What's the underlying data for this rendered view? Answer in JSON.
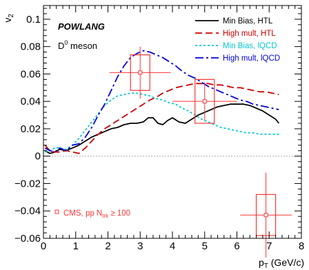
{
  "chart_data": {
    "type": "line",
    "xlabel": "p",
    "xlabel_sub": "T",
    "xlabel_unit": " (GeV/c)",
    "ylabel": "v",
    "ylabel_sub": "2",
    "xlim": [
      0,
      8
    ],
    "ylim": [
      -0.06,
      0.11
    ],
    "x_ticks": [
      0,
      1,
      2,
      3,
      4,
      5,
      6,
      7,
      8
    ],
    "y_ticks": [
      -0.06,
      -0.04,
      -0.02,
      0,
      0.02,
      0.04,
      0.06,
      0.08,
      0.1
    ],
    "y_tick_labels": [
      "−0.06",
      "−0.04",
      "−0.02",
      "0",
      "0.02",
      "0.04",
      "0.06",
      "0.08",
      "0.1"
    ],
    "annotations": {
      "model": "POWLANG",
      "particle": "D",
      "particle_sup": "0",
      "particle_suffix": " meson"
    },
    "legend_position": "top-right",
    "series": [
      {
        "name": "Min Bias, HTL",
        "color": "#000000",
        "dash": "solid",
        "x": [
          0.05,
          0.2,
          0.35,
          0.5,
          0.7,
          0.9,
          1.1,
          1.3,
          1.5,
          1.7,
          1.9,
          2.1,
          2.3,
          2.5,
          2.7,
          2.9,
          3.1,
          3.25,
          3.4,
          3.55,
          3.7,
          3.85,
          4.0,
          4.2,
          4.4,
          4.6,
          4.8,
          5.0,
          5.2,
          5.4,
          5.6,
          5.8,
          6.0,
          6.2,
          6.4,
          6.6,
          6.8,
          7.0,
          7.2,
          7.3
        ],
        "y": [
          0.004,
          0.002,
          0.003,
          0.005,
          0.004,
          0.006,
          0.008,
          0.011,
          0.014,
          0.016,
          0.018,
          0.02,
          0.021,
          0.023,
          0.024,
          0.024,
          0.025,
          0.028,
          0.028,
          0.024,
          0.023,
          0.026,
          0.028,
          0.025,
          0.024,
          0.027,
          0.03,
          0.032,
          0.034,
          0.036,
          0.037,
          0.038,
          0.038,
          0.038,
          0.037,
          0.035,
          0.033,
          0.03,
          0.027,
          0.024
        ]
      },
      {
        "name": "High mult, HTL",
        "color": "#cc0000",
        "dash": "long-dash",
        "x": [
          0.05,
          0.2,
          0.35,
          0.5,
          0.7,
          0.9,
          1.1,
          1.3,
          1.5,
          1.7,
          1.9,
          2.1,
          2.3,
          2.5,
          2.7,
          2.9,
          3.1,
          3.3,
          3.5,
          3.7,
          3.9,
          4.1,
          4.3,
          4.5,
          4.7,
          4.9,
          5.1,
          5.3,
          5.5,
          5.7,
          5.9,
          6.1,
          6.3,
          6.5,
          6.7,
          6.9,
          7.1,
          7.3
        ],
        "y": [
          0.008,
          0.004,
          0.003,
          0.003,
          0.004,
          0.003,
          0.002,
          0.006,
          0.011,
          0.016,
          0.02,
          0.023,
          0.026,
          0.029,
          0.032,
          0.035,
          0.038,
          0.041,
          0.043,
          0.046,
          0.048,
          0.05,
          0.051,
          0.052,
          0.053,
          0.053,
          0.053,
          0.052,
          0.052,
          0.051,
          0.05,
          0.05,
          0.049,
          0.048,
          0.047,
          0.047,
          0.046,
          0.045
        ]
      },
      {
        "name": "Min Bias, lQCD",
        "color": "#00c8d2",
        "dash": "dotted",
        "x": [
          0.05,
          0.2,
          0.35,
          0.5,
          0.7,
          0.9,
          1.1,
          1.3,
          1.5,
          1.7,
          1.9,
          2.1,
          2.3,
          2.5,
          2.7,
          2.9,
          3.1,
          3.3,
          3.5,
          3.7,
          3.9,
          4.1,
          4.3,
          4.5,
          4.7,
          4.9,
          5.1,
          5.3,
          5.5,
          5.7,
          5.9,
          6.1,
          6.3,
          6.5,
          6.7,
          6.9,
          7.1,
          7.3
        ],
        "y": [
          0.003,
          0.004,
          0.006,
          0.006,
          0.005,
          0.008,
          0.013,
          0.019,
          0.025,
          0.031,
          0.037,
          0.041,
          0.044,
          0.045,
          0.046,
          0.046,
          0.045,
          0.044,
          0.042,
          0.041,
          0.039,
          0.038,
          0.035,
          0.033,
          0.03,
          0.027,
          0.025,
          0.023,
          0.021,
          0.02,
          0.019,
          0.018,
          0.017,
          0.017,
          0.016,
          0.016,
          0.016,
          0.016
        ]
      },
      {
        "name": "High mult, lQCD",
        "color": "#0000dd",
        "dash": "dash-dot",
        "x": [
          0.05,
          0.2,
          0.35,
          0.5,
          0.7,
          0.9,
          1.1,
          1.3,
          1.5,
          1.7,
          1.9,
          2.1,
          2.3,
          2.5,
          2.7,
          2.9,
          3.1,
          3.3,
          3.5,
          3.7,
          3.9,
          4.1,
          4.3,
          4.5,
          4.7,
          4.9,
          5.1,
          5.3,
          5.5,
          5.7,
          5.9,
          6.1,
          6.3,
          6.5,
          6.7,
          6.9,
          7.1,
          7.3
        ],
        "y": [
          0.006,
          0.004,
          0.003,
          0.006,
          0.004,
          0.008,
          0.009,
          0.014,
          0.021,
          0.03,
          0.038,
          0.048,
          0.058,
          0.066,
          0.072,
          0.075,
          0.077,
          0.076,
          0.074,
          0.072,
          0.069,
          0.066,
          0.062,
          0.059,
          0.057,
          0.054,
          0.051,
          0.049,
          0.047,
          0.045,
          0.043,
          0.041,
          0.04,
          0.038,
          0.037,
          0.036,
          0.035,
          0.034
        ]
      }
    ],
    "data_points": {
      "name": "CMS, pp N",
      "name_sub": "trk",
      "name_suffix": " ≥ 100",
      "color": "#ff3333",
      "points": [
        {
          "x": 3.0,
          "y": 0.061,
          "x_err_low": 0.95,
          "x_err_high": 0.95,
          "y_err": 0.019,
          "syst_dx": 0.3,
          "syst_dy": 0.013
        },
        {
          "x": 5.0,
          "y": 0.04,
          "x_err_low": 1.0,
          "x_err_high": 1.0,
          "y_err": 0.014,
          "syst_dx": 0.3,
          "syst_dy": 0.016
        },
        {
          "x": 6.9,
          "y": -0.043,
          "x_err_low": 0.8,
          "x_err_high": 0.8,
          "y_err": 0.031,
          "syst_dx": 0.3,
          "syst_dy": 0.015
        }
      ]
    },
    "zero_line": {
      "y": 0,
      "style": "dotted",
      "color": "#999999"
    }
  }
}
